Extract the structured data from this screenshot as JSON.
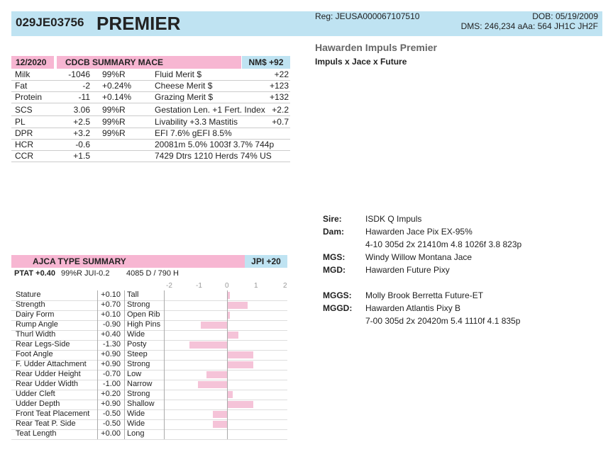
{
  "header": {
    "id": "029JE03756",
    "name": "PREMIER",
    "reg": "Reg: JEUSA000067107510",
    "dob": "DOB: 05/19/2009",
    "dms": "DMS: 246,234  aAa: 564  JH1C JH2F"
  },
  "animal": {
    "full_name": "Hawarden Impuls Premier",
    "pedigree": "Impuls x Jace x Future"
  },
  "summary": {
    "date": "12/2020",
    "title": "CDCB SUMMARY MACE",
    "nm": "NM$ +92",
    "rows": [
      {
        "trait": "Milk",
        "val": "-1046",
        "rel": "99%R",
        "trait2": "Fluid Merit $",
        "val2": "+22"
      },
      {
        "trait": "Fat",
        "val": "-2",
        "rel": "+0.24%",
        "trait2": "Cheese Merit $",
        "val2": "+123"
      },
      {
        "trait": "Protein",
        "val": "-11",
        "rel": "+0.14%",
        "trait2": "Grazing Merit $",
        "val2": "+132"
      },
      {
        "trait": "SCS",
        "val": "3.06",
        "rel": "99%R",
        "trait2": "Gestation Len. +1  Fert. Index",
        "val2": "+2.2"
      },
      {
        "trait": "PL",
        "val": "+2.5",
        "rel": "99%R",
        "trait2": "Livability  +3.3      Mastitis",
        "val2": "+0.7"
      },
      {
        "trait": "DPR",
        "val": "+3.2",
        "rel": "99%R",
        "trait2": "  EFI  7.6%  gEFI  8.5%",
        "val2": ""
      },
      {
        "trait": "HCR",
        "val": "-0.6",
        "rel": "",
        "trait2": "20081m  5.0%  1003f  3.7%  744p",
        "val2": ""
      },
      {
        "trait": "CCR",
        "val": "+1.5",
        "rel": "",
        "trait2": "      7429 Dtrs  1210 Herds  74% US",
        "val2": ""
      }
    ]
  },
  "pedigree": {
    "sire_label": "Sire:",
    "sire": "ISDK Q Impuls",
    "dam_label": "Dam:",
    "dam": "Hawarden Jace Pix EX-95%",
    "dam_rec": "4-10 305d 2x 21410m 4.8 1026f 3.8 823p",
    "mgs_label": "MGS:",
    "mgs": "Windy Willow Montana Jace",
    "mgd_label": "MGD:",
    "mgd": "Hawarden Future Pixy",
    "mggs_label": "MGGS:",
    "mggs": "Molly Brook Berretta Future-ET",
    "mggd_label": "MGGD:",
    "mggd": "Hawarden Atlantis Pixy B",
    "mggd_rec": "7-00 305d 2x 20420m 5.4 1110f 4.1 835p"
  },
  "type_summary": {
    "title": "AJCA TYPE SUMMARY",
    "jpi": "JPI +20",
    "ptat": "PTAT +0.40",
    "ptat_rel": "99%R  JUI-0.2",
    "daughters": "4085 D /  790 H",
    "axis_ticks": [
      "-2",
      "-1",
      "0",
      "1",
      "2"
    ],
    "traits": [
      {
        "name": "Stature",
        "value": 0.1,
        "label": "+0.10",
        "desc": "Tall"
      },
      {
        "name": "Strength",
        "value": 0.7,
        "label": "+0.70",
        "desc": "Strong"
      },
      {
        "name": "Dairy Form",
        "value": 0.1,
        "label": "+0.10",
        "desc": "Open Rib"
      },
      {
        "name": "Rump Angle",
        "value": -0.9,
        "label": "-0.90",
        "desc": "High Pins"
      },
      {
        "name": "Thurl Width",
        "value": 0.4,
        "label": "+0.40",
        "desc": "Wide"
      },
      {
        "name": "Rear Legs-Side",
        "value": -1.3,
        "label": "-1.30",
        "desc": "Posty"
      },
      {
        "name": "Foot Angle",
        "value": 0.9,
        "label": "+0.90",
        "desc": "Steep"
      },
      {
        "name": "F. Udder Attachment",
        "value": 0.9,
        "label": "+0.90",
        "desc": "Strong"
      },
      {
        "name": "Rear Udder Height",
        "value": -0.7,
        "label": "-0.70",
        "desc": "Low"
      },
      {
        "name": "Rear Udder Width",
        "value": -1.0,
        "label": "-1.00",
        "desc": "Narrow"
      },
      {
        "name": "Udder Cleft",
        "value": 0.2,
        "label": "+0.20",
        "desc": "Strong"
      },
      {
        "name": "Udder Depth",
        "value": 0.9,
        "label": "+0.90",
        "desc": "Shallow"
      },
      {
        "name": "Front Teat Placement",
        "value": -0.5,
        "label": "-0.50",
        "desc": "Wide"
      },
      {
        "name": "Rear Teat P. Side",
        "value": -0.5,
        "label": "-0.50",
        "desc": "Wide"
      },
      {
        "name": "Teat Length",
        "value": 0.0,
        "label": "+0.00",
        "desc": "Long"
      }
    ]
  },
  "colors": {
    "blue": "#bfe3f2",
    "pink": "#f7b6d2",
    "bar": "#f5c3d8"
  }
}
